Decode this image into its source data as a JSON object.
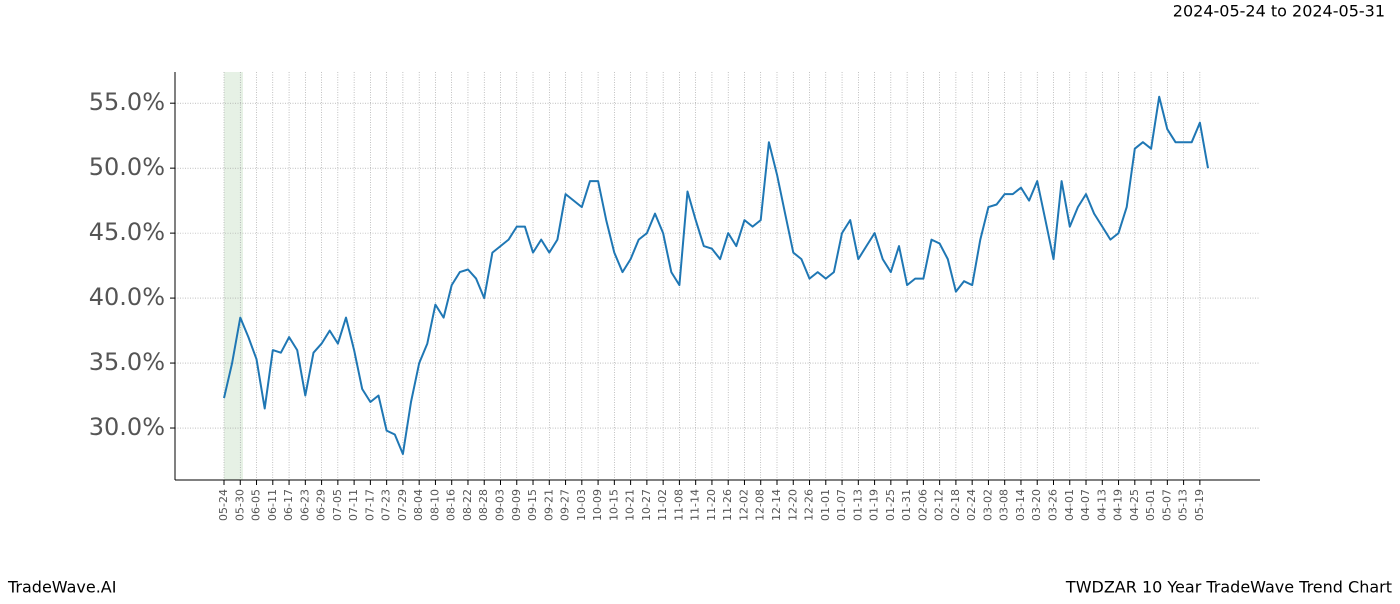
{
  "chart_data": {
    "type": "line",
    "date_range": "2024-05-24 to 2024-05-31",
    "brand": "TradeWave.AI",
    "title": "TWDZAR 10 Year TradeWave Trend Chart",
    "highlight": {
      "start": "05-24",
      "end": "05-31",
      "color": "#d5e8d4"
    },
    "grid": true,
    "ylim": [
      26,
      57.4
    ],
    "yticks": [
      {
        "value": 30,
        "label": "30.0%"
      },
      {
        "value": 35,
        "label": "35.0%"
      },
      {
        "value": 40,
        "label": "40.0%"
      },
      {
        "value": 45,
        "label": "45.0%"
      },
      {
        "value": 50,
        "label": "50.0%"
      },
      {
        "value": 55,
        "label": "55.0%"
      }
    ],
    "xticks": [
      "05-24",
      "05-30",
      "06-05",
      "06-11",
      "06-17",
      "06-23",
      "06-29",
      "07-05",
      "07-11",
      "07-17",
      "07-23",
      "07-29",
      "08-04",
      "08-10",
      "08-16",
      "08-22",
      "08-28",
      "09-03",
      "09-09",
      "09-15",
      "09-21",
      "09-27",
      "10-03",
      "10-09",
      "10-15",
      "10-21",
      "10-27",
      "11-02",
      "11-08",
      "11-14",
      "11-20",
      "11-26",
      "12-02",
      "12-08",
      "12-14",
      "12-20",
      "12-26",
      "01-01",
      "01-07",
      "01-13",
      "01-19",
      "01-25",
      "01-31",
      "02-06",
      "02-12",
      "02-18",
      "02-24",
      "03-02",
      "03-08",
      "03-14",
      "03-20",
      "03-26",
      "04-01",
      "04-07",
      "04-13",
      "04-19",
      "04-25",
      "05-01",
      "05-07",
      "05-13",
      "05-19"
    ],
    "x": [
      "05-24",
      "05-27",
      "05-30",
      "06-02",
      "06-05",
      "06-08",
      "06-11",
      "06-14",
      "06-17",
      "06-20",
      "06-23",
      "06-26",
      "06-29",
      "07-02",
      "07-05",
      "07-08",
      "07-11",
      "07-14",
      "07-17",
      "07-20",
      "07-23",
      "07-26",
      "07-29",
      "08-01",
      "08-04",
      "08-07",
      "08-10",
      "08-13",
      "08-16",
      "08-19",
      "08-22",
      "08-25",
      "08-28",
      "08-31",
      "09-03",
      "09-06",
      "09-09",
      "09-12",
      "09-15",
      "09-18",
      "09-21",
      "09-24",
      "09-27",
      "09-30",
      "10-03",
      "10-06",
      "10-09",
      "10-12",
      "10-15",
      "10-18",
      "10-21",
      "10-24",
      "10-27",
      "10-30",
      "11-02",
      "11-05",
      "11-08",
      "11-11",
      "11-14",
      "11-17",
      "11-20",
      "11-23",
      "11-26",
      "11-29",
      "12-02",
      "12-05",
      "12-08",
      "12-11",
      "12-14",
      "12-17",
      "12-20",
      "12-23",
      "12-26",
      "12-29",
      "01-01",
      "01-04",
      "01-07",
      "01-10",
      "01-13",
      "01-16",
      "01-19",
      "01-22",
      "01-25",
      "01-28",
      "01-31",
      "02-03",
      "02-06",
      "02-09",
      "02-12",
      "02-15",
      "02-18",
      "02-21",
      "02-24",
      "02-27",
      "03-02",
      "03-05",
      "03-08",
      "03-11",
      "03-14",
      "03-17",
      "03-20",
      "03-23",
      "03-26",
      "03-29",
      "04-01",
      "04-04",
      "04-07",
      "04-10",
      "04-13",
      "04-16",
      "04-19",
      "04-22",
      "04-25",
      "04-28",
      "05-01",
      "05-04",
      "05-07",
      "05-10",
      "05-13",
      "05-16",
      "05-19",
      "05-22"
    ],
    "series": [
      {
        "color": "#1f77b4",
        "values": [
          32.3,
          35,
          38.5,
          37,
          35.3,
          31.5,
          36,
          35.8,
          37,
          36,
          32.5,
          35.8,
          36.5,
          37.5,
          36.5,
          38.5,
          36,
          33,
          32,
          32.5,
          29.8,
          29.5,
          28,
          32,
          35,
          36.5,
          39.5,
          38.5,
          41,
          42,
          42.2,
          41.5,
          40,
          43.5,
          44,
          44.5,
          45.5,
          45.5,
          43.5,
          44.5,
          43.5,
          44.5,
          48,
          47.5,
          47,
          49,
          49,
          46,
          43.5,
          42,
          43,
          44.5,
          45,
          46.5,
          45,
          42,
          41,
          48.2,
          46,
          44,
          43.8,
          43,
          45,
          44,
          46,
          45.5,
          46,
          52,
          49.5,
          46.5,
          43.5,
          43,
          41.5,
          42,
          41.5,
          42,
          45,
          46,
          43,
          44,
          45,
          43,
          42,
          44,
          41,
          41.5,
          41.5,
          44.5,
          44.2,
          43,
          40.5,
          41.3,
          41,
          44.5,
          47,
          47.2,
          48,
          48,
          48.5,
          47.5,
          49,
          46,
          43,
          49,
          45.5,
          47,
          48,
          46.5,
          45.5,
          44.5,
          45,
          47,
          51.5,
          52,
          51.5,
          55.5,
          53,
          52,
          52,
          52,
          53.5,
          50
        ]
      }
    ]
  }
}
